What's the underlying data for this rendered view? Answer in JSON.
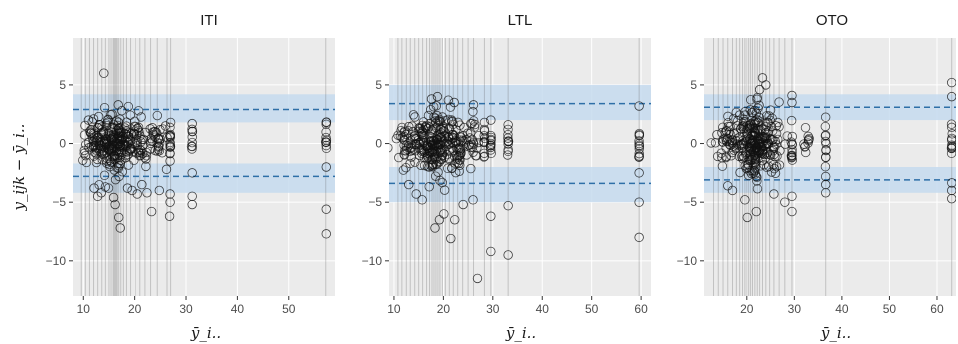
{
  "chart_data": [
    {
      "type": "scatter",
      "title": "ITI",
      "xlabel": "ȳ_i..",
      "ylabel": "y_ijk − ȳ_i..",
      "xlim": [
        8,
        59
      ],
      "ylim": [
        -13,
        9
      ],
      "xticks": [
        10,
        20,
        30,
        40,
        50
      ],
      "yticks": [
        -10,
        -5,
        0,
        5
      ],
      "band_upper": {
        "line": 2.9,
        "low": 1.8,
        "high": 4.2
      },
      "band_lower": {
        "line": -2.8,
        "low": -4.2,
        "high": -1.7
      },
      "vlines": [
        9.6,
        10.4,
        11.2,
        12.0,
        12.8,
        13.6,
        14.3,
        15.0,
        15.4,
        15.8,
        16.0,
        16.2,
        16.4,
        16.6,
        16.9,
        17.3,
        17.8,
        18.4,
        19.2,
        20.1,
        21.0,
        22.0,
        23.1,
        24.4,
        26.3,
        27.0,
        57.2
      ],
      "points": [
        {
          "x": 14.0,
          "y": 6.0
        },
        {
          "x": 16.8,
          "y": 3.3
        },
        {
          "x": 17.5,
          "y": 2.8
        },
        {
          "x": 15.6,
          "y": 2.5
        },
        {
          "x": 16.9,
          "y": -6.3
        },
        {
          "x": 16.2,
          "y": -5.2
        },
        {
          "x": 17.2,
          "y": -7.2
        },
        {
          "x": 15.9,
          "y": -4.6
        },
        {
          "x": 26.9,
          "y": -5.0
        },
        {
          "x": 26.9,
          "y": -4.3
        },
        {
          "x": 26.8,
          "y": -6.2
        },
        {
          "x": 24.8,
          "y": -4.0
        },
        {
          "x": 26.2,
          "y": -2.2
        },
        {
          "x": 26.0,
          "y": 1.5
        },
        {
          "x": 27.0,
          "y": 1.8
        },
        {
          "x": 22.4,
          "y": -4.2
        },
        {
          "x": 31.2,
          "y": -4.5
        },
        {
          "x": 31.2,
          "y": -5.2
        },
        {
          "x": 31.2,
          "y": -2.5
        },
        {
          "x": 31.2,
          "y": 1.7
        },
        {
          "x": 12.1,
          "y": -3.8
        },
        {
          "x": 12.8,
          "y": -4.5
        },
        {
          "x": 13.5,
          "y": -4.2
        },
        {
          "x": 14.3,
          "y": -3.7
        },
        {
          "x": 11.0,
          "y": 2.0
        },
        {
          "x": 12.0,
          "y": 2.1
        },
        {
          "x": 13.0,
          "y": 2.3
        },
        {
          "x": 18.6,
          "y": -3.8
        },
        {
          "x": 19.5,
          "y": -4.0
        },
        {
          "x": 20.5,
          "y": -4.3
        },
        {
          "x": 21.4,
          "y": -3.5
        },
        {
          "x": 23.3,
          "y": -5.8
        },
        {
          "x": 57.3,
          "y": -5.6
        },
        {
          "x": 57.3,
          "y": -7.7
        },
        {
          "x": 57.3,
          "y": -2.0
        },
        {
          "x": 57.3,
          "y": 1.8
        }
      ],
      "cloud_clusters": [
        {
          "cx": 16.4,
          "sx": 1.8,
          "sy": 1.3,
          "n": 170
        },
        {
          "cx": 12.5,
          "sx": 1.8,
          "sy": 0.9,
          "n": 60
        },
        {
          "cx": 20.5,
          "sx": 1.5,
          "sy": 1.0,
          "n": 50
        },
        {
          "cx": 24.3,
          "sx": 0.8,
          "sy": 0.9,
          "n": 25
        },
        {
          "cx": 26.9,
          "sx": 0.05,
          "sy": 0.9,
          "n": 14
        },
        {
          "cx": 31.2,
          "sx": 0.05,
          "sy": 0.7,
          "n": 8
        },
        {
          "cx": 57.3,
          "sx": 0.05,
          "sy": 0.8,
          "n": 10
        }
      ]
    },
    {
      "type": "scatter",
      "title": "LTL",
      "xlabel": "ȳ_i..",
      "ylabel": "",
      "xlim": [
        9,
        62
      ],
      "ylim": [
        -13,
        9
      ],
      "xticks": [
        10,
        20,
        30,
        40,
        50,
        60
      ],
      "yticks": [
        -10,
        -5,
        0,
        5
      ],
      "band_upper": {
        "line": 3.4,
        "low": 2.0,
        "high": 5.0
      },
      "band_lower": {
        "line": -3.4,
        "low": -5.0,
        "high": -2.0
      },
      "vlines": [
        10.8,
        11.6,
        12.5,
        13.3,
        14.2,
        15.0,
        15.8,
        16.6,
        17.2,
        17.7,
        18.1,
        18.5,
        18.9,
        19.3,
        19.8,
        20.4,
        21.2,
        22.0,
        22.9,
        23.9,
        25.0,
        26.1,
        28.3,
        29.6,
        33.1,
        59.6
      ],
      "points": [
        {
          "x": 26.9,
          "y": -11.5
        },
        {
          "x": 29.6,
          "y": -9.2
        },
        {
          "x": 33.1,
          "y": -9.5
        },
        {
          "x": 29.6,
          "y": -6.2
        },
        {
          "x": 33.1,
          "y": -5.3
        },
        {
          "x": 21.5,
          "y": -8.1
        },
        {
          "x": 18.3,
          "y": -7.2
        },
        {
          "x": 19.2,
          "y": -6.5
        },
        {
          "x": 20.1,
          "y": -6.0
        },
        {
          "x": 22.3,
          "y": -6.5
        },
        {
          "x": 24.0,
          "y": -5.2
        },
        {
          "x": 26.0,
          "y": -4.8
        },
        {
          "x": 17.6,
          "y": 3.8
        },
        {
          "x": 18.8,
          "y": 4.0
        },
        {
          "x": 21.0,
          "y": 3.7
        },
        {
          "x": 22.2,
          "y": 3.5
        },
        {
          "x": 26.1,
          "y": 3.3
        },
        {
          "x": 28.3,
          "y": 1.8
        },
        {
          "x": 29.6,
          "y": 2.0
        },
        {
          "x": 33.1,
          "y": 1.6
        },
        {
          "x": 59.6,
          "y": -8.0
        },
        {
          "x": 59.6,
          "y": -5.0
        },
        {
          "x": 59.6,
          "y": -2.5
        },
        {
          "x": 59.6,
          "y": 3.2
        },
        {
          "x": 13.0,
          "y": -3.5
        },
        {
          "x": 14.5,
          "y": -4.3
        },
        {
          "x": 15.7,
          "y": -4.8
        }
      ],
      "cloud_clusters": [
        {
          "cx": 18.6,
          "sx": 2.0,
          "sy": 1.4,
          "n": 170
        },
        {
          "cx": 13.8,
          "sx": 1.8,
          "sy": 0.9,
          "n": 60
        },
        {
          "cx": 22.8,
          "sx": 1.4,
          "sy": 1.2,
          "n": 55
        },
        {
          "cx": 26.1,
          "sx": 0.6,
          "sy": 1.0,
          "n": 22
        },
        {
          "cx": 28.3,
          "sx": 0.05,
          "sy": 0.8,
          "n": 10
        },
        {
          "cx": 29.6,
          "sx": 0.05,
          "sy": 0.9,
          "n": 10
        },
        {
          "cx": 33.1,
          "sx": 0.05,
          "sy": 0.8,
          "n": 10
        },
        {
          "cx": 59.6,
          "sx": 0.05,
          "sy": 0.9,
          "n": 12
        }
      ]
    },
    {
      "type": "scatter",
      "title": "OTO",
      "xlabel": "ȳ_i..",
      "ylabel": "",
      "xlim": [
        11,
        64
      ],
      "ylim": [
        -13,
        9
      ],
      "xticks": [
        20,
        30,
        40,
        50,
        60
      ],
      "yticks": [
        -10,
        -5,
        0,
        5
      ],
      "band_upper": {
        "line": 3.1,
        "low": 2.0,
        "high": 4.2
      },
      "band_lower": {
        "line": -3.1,
        "low": -4.2,
        "high": -2.0
      },
      "vlines": [
        13.0,
        14.0,
        15.0,
        16.0,
        17.0,
        17.8,
        18.5,
        19.1,
        19.6,
        20.0,
        20.4,
        20.8,
        21.2,
        21.7,
        22.2,
        22.7,
        23.3,
        24.0,
        24.8,
        25.7,
        26.8,
        28.0,
        29.5,
        36.6,
        63.1
      ],
      "points": [
        {
          "x": 20.1,
          "y": -6.3
        },
        {
          "x": 22.0,
          "y": -5.8
        },
        {
          "x": 19.6,
          "y": -4.8
        },
        {
          "x": 28.0,
          "y": -5.0
        },
        {
          "x": 29.5,
          "y": -5.8
        },
        {
          "x": 29.5,
          "y": -4.5
        },
        {
          "x": 36.6,
          "y": -4.2
        },
        {
          "x": 36.6,
          "y": -3.5
        },
        {
          "x": 23.3,
          "y": 5.6
        },
        {
          "x": 24.0,
          "y": 5.0
        },
        {
          "x": 22.7,
          "y": 4.6
        },
        {
          "x": 29.5,
          "y": 4.1
        },
        {
          "x": 29.5,
          "y": 3.5
        },
        {
          "x": 63.1,
          "y": 5.2
        },
        {
          "x": 63.1,
          "y": 4.0
        },
        {
          "x": 63.1,
          "y": -4.0
        },
        {
          "x": 63.1,
          "y": -4.7
        },
        {
          "x": 16.0,
          "y": -3.6
        },
        {
          "x": 17.0,
          "y": -4.0
        },
        {
          "x": 25.7,
          "y": -4.3
        }
      ],
      "cloud_clusters": [
        {
          "cx": 21.4,
          "sx": 1.8,
          "sy": 1.5,
          "n": 200
        },
        {
          "cx": 16.0,
          "sx": 1.6,
          "sy": 1.0,
          "n": 45
        },
        {
          "cx": 25.5,
          "sx": 1.4,
          "sy": 1.3,
          "n": 45
        },
        {
          "cx": 29.5,
          "sx": 0.05,
          "sy": 1.0,
          "n": 12
        },
        {
          "cx": 32.5,
          "sx": 0.4,
          "sy": 0.8,
          "n": 10
        },
        {
          "cx": 36.6,
          "sx": 0.05,
          "sy": 1.0,
          "n": 12
        },
        {
          "cx": 63.1,
          "sx": 0.05,
          "sy": 1.0,
          "n": 12
        }
      ]
    }
  ],
  "style": {
    "panel_background": "#ebebeb",
    "band_fill": "#c6dbef",
    "band_line": "#2e6fa7",
    "vline_color": "#bdbdbd",
    "vline_dark": "#4a4a4a",
    "point_stroke": "#111111"
  }
}
